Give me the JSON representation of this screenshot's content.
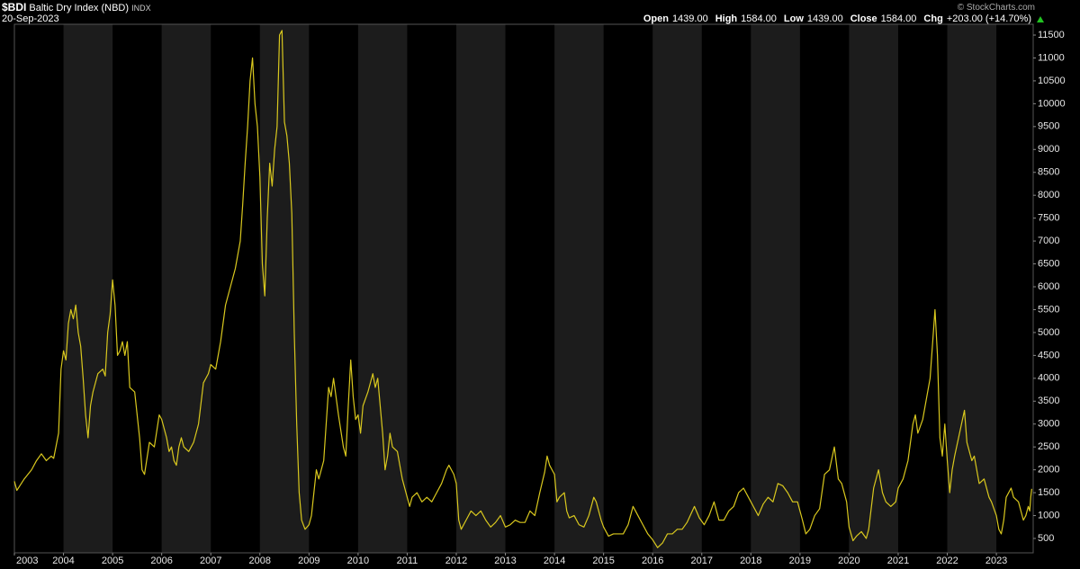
{
  "header": {
    "symbol": "$BDI",
    "name": "Baltic Dry Index (NBD)",
    "exchange": "INDX",
    "date": "20-Sep-2023",
    "watermark": "© StockCharts.com",
    "quote": [
      {
        "label": "Open",
        "value": "1439.00"
      },
      {
        "label": "High",
        "value": "1584.00"
      },
      {
        "label": "Low",
        "value": "1439.00"
      },
      {
        "label": "Close",
        "value": "1584.00"
      },
      {
        "label": "Chg",
        "value": "+203.00 (+14.70%)"
      }
    ]
  },
  "chart_data": {
    "type": "line",
    "color": "#d9c81e",
    "background": "#000000",
    "band_color": "#1c1c1c",
    "xlim": [
      2003,
      2023.75
    ],
    "xticks": [
      2003,
      2004,
      2005,
      2006,
      2007,
      2008,
      2009,
      2010,
      2011,
      2012,
      2013,
      2014,
      2015,
      2016,
      2017,
      2018,
      2019,
      2020,
      2021,
      2022,
      2023
    ],
    "ylim": [
      186,
      11736
    ],
    "yticks": [
      500,
      1000,
      1500,
      2000,
      2500,
      3000,
      3500,
      4000,
      4500,
      5000,
      5500,
      6000,
      6500,
      7000,
      7500,
      8000,
      8500,
      9000,
      9500,
      10000,
      10500,
      11000,
      11500
    ],
    "series": [
      {
        "name": "$BDI",
        "x": [
          2003.0,
          2003.05,
          2003.2,
          2003.35,
          2003.45,
          2003.55,
          2003.65,
          2003.75,
          2003.8,
          2003.9,
          2003.95,
          2004.0,
          2004.05,
          2004.1,
          2004.15,
          2004.2,
          2004.25,
          2004.3,
          2004.35,
          2004.4,
          2004.45,
          2004.5,
          2004.55,
          2004.6,
          2004.7,
          2004.8,
          2004.85,
          2004.9,
          2004.95,
          2005.0,
          2005.05,
          2005.1,
          2005.15,
          2005.2,
          2005.25,
          2005.3,
          2005.35,
          2005.45,
          2005.55,
          2005.6,
          2005.65,
          2005.75,
          2005.85,
          2005.95,
          2006.0,
          2006.1,
          2006.15,
          2006.2,
          2006.25,
          2006.3,
          2006.35,
          2006.4,
          2006.45,
          2006.55,
          2006.65,
          2006.75,
          2006.85,
          2006.95,
          2007.0,
          2007.1,
          2007.15,
          2007.2,
          2007.3,
          2007.4,
          2007.5,
          2007.55,
          2007.6,
          2007.65,
          2007.7,
          2007.75,
          2007.8,
          2007.85,
          2007.9,
          2007.95,
          2008.0,
          2008.05,
          2008.1,
          2008.15,
          2008.2,
          2008.25,
          2008.3,
          2008.35,
          2008.4,
          2008.45,
          2008.5,
          2008.55,
          2008.6,
          2008.65,
          2008.7,
          2008.75,
          2008.8,
          2008.85,
          2008.92,
          2009.0,
          2009.05,
          2009.1,
          2009.15,
          2009.2,
          2009.3,
          2009.35,
          2009.4,
          2009.45,
          2009.5,
          2009.6,
          2009.7,
          2009.75,
          2009.8,
          2009.85,
          2009.9,
          2009.95,
          2010.0,
          2010.05,
          2010.1,
          2010.2,
          2010.3,
          2010.35,
          2010.4,
          2010.5,
          2010.55,
          2010.6,
          2010.65,
          2010.7,
          2010.8,
          2010.9,
          2011.0,
          2011.05,
          2011.1,
          2011.2,
          2011.3,
          2011.4,
          2011.5,
          2011.6,
          2011.7,
          2011.8,
          2011.85,
          2011.95,
          2012.0,
          2012.05,
          2012.1,
          2012.2,
          2012.3,
          2012.4,
          2012.5,
          2012.6,
          2012.7,
          2012.8,
          2012.9,
          2013.0,
          2013.1,
          2013.2,
          2013.3,
          2013.4,
          2013.5,
          2013.6,
          2013.7,
          2013.8,
          2013.85,
          2013.9,
          2014.0,
          2014.05,
          2014.1,
          2014.2,
          2014.25,
          2014.3,
          2014.4,
          2014.5,
          2014.6,
          2014.7,
          2014.8,
          2014.85,
          2014.95,
          2015.0,
          2015.1,
          2015.2,
          2015.3,
          2015.4,
          2015.5,
          2015.6,
          2015.65,
          2015.7,
          2015.8,
          2015.9,
          2016.0,
          2016.1,
          2016.2,
          2016.3,
          2016.4,
          2016.5,
          2016.6,
          2016.7,
          2016.85,
          2016.95,
          2017.05,
          2017.15,
          2017.25,
          2017.35,
          2017.45,
          2017.55,
          2017.65,
          2017.75,
          2017.85,
          2017.95,
          2018.05,
          2018.15,
          2018.25,
          2018.35,
          2018.45,
          2018.55,
          2018.65,
          2018.75,
          2018.85,
          2018.95,
          2019.05,
          2019.12,
          2019.2,
          2019.3,
          2019.4,
          2019.5,
          2019.6,
          2019.7,
          2019.78,
          2019.85,
          2019.95,
          2020.0,
          2020.08,
          2020.15,
          2020.25,
          2020.35,
          2020.4,
          2020.5,
          2020.6,
          2020.68,
          2020.75,
          2020.85,
          2020.95,
          2021.0,
          2021.1,
          2021.2,
          2021.3,
          2021.35,
          2021.4,
          2021.5,
          2021.55,
          2021.65,
          2021.75,
          2021.8,
          2021.85,
          2021.9,
          2021.95,
          2022.0,
          2022.05,
          2022.1,
          2022.15,
          2022.25,
          2022.35,
          2022.4,
          2022.5,
          2022.55,
          2022.65,
          2022.75,
          2022.85,
          2022.9,
          2023.0,
          2023.05,
          2023.1,
          2023.15,
          2023.2,
          2023.3,
          2023.35,
          2023.45,
          2023.5,
          2023.55,
          2023.6,
          2023.65,
          2023.68,
          2023.7,
          2023.72
        ],
        "values": [
          1750,
          1550,
          1800,
          2000,
          2200,
          2350,
          2200,
          2300,
          2250,
          2800,
          4200,
          4600,
          4400,
          5200,
          5500,
          5300,
          5600,
          5000,
          4700,
          4000,
          3200,
          2700,
          3400,
          3700,
          4100,
          4200,
          4050,
          5000,
          5400,
          6150,
          5600,
          4500,
          4600,
          4800,
          4500,
          4800,
          3800,
          3700,
          2700,
          2000,
          1900,
          2600,
          2500,
          3200,
          3100,
          2700,
          2400,
          2500,
          2200,
          2100,
          2500,
          2700,
          2500,
          2400,
          2600,
          3000,
          3900,
          4100,
          4300,
          4200,
          4500,
          4800,
          5600,
          6000,
          6400,
          6700,
          7000,
          7800,
          8700,
          9500,
          10500,
          11000,
          10000,
          9500,
          8400,
          6500,
          5800,
          7500,
          8700,
          8200,
          9000,
          9500,
          11500,
          11600,
          9600,
          9300,
          8700,
          7600,
          5000,
          3000,
          1500,
          900,
          700,
          800,
          1000,
          1500,
          2000,
          1800,
          2200,
          3000,
          3800,
          3600,
          4000,
          3200,
          2500,
          2300,
          3400,
          4400,
          3600,
          3100,
          3200,
          2800,
          3400,
          3700,
          4100,
          3800,
          4000,
          2800,
          2000,
          2300,
          2800,
          2500,
          2400,
          1800,
          1400,
          1200,
          1400,
          1500,
          1300,
          1400,
          1300,
          1500,
          1700,
          2000,
          2100,
          1900,
          1700,
          900,
          700,
          900,
          1100,
          1000,
          1100,
          900,
          750,
          850,
          1000,
          750,
          800,
          900,
          850,
          850,
          1100,
          1000,
          1500,
          1950,
          2300,
          2100,
          1900,
          1300,
          1400,
          1500,
          1100,
          950,
          1000,
          800,
          750,
          1000,
          1400,
          1300,
          900,
          750,
          550,
          600,
          600,
          600,
          800,
          1200,
          1100,
          1000,
          800,
          600,
          470,
          300,
          400,
          600,
          600,
          700,
          700,
          850,
          1200,
          950,
          800,
          1000,
          1300,
          900,
          900,
          1100,
          1200,
          1500,
          1600,
          1400,
          1200,
          1000,
          1250,
          1400,
          1300,
          1700,
          1650,
          1500,
          1300,
          1300,
          900,
          600,
          700,
          1000,
          1150,
          1900,
          2000,
          2500,
          1800,
          1700,
          1300,
          750,
          450,
          550,
          650,
          500,
          700,
          1600,
          2000,
          1500,
          1300,
          1200,
          1300,
          1600,
          1800,
          2200,
          3000,
          3200,
          2800,
          3100,
          3400,
          4000,
          5500,
          4500,
          2700,
          2300,
          3000,
          2200,
          1500,
          2000,
          2300,
          2800,
          3300,
          2600,
          2200,
          2300,
          1700,
          1800,
          1400,
          1300,
          1000,
          700,
          600,
          900,
          1400,
          1600,
          1400,
          1300,
          1100,
          900,
          1000,
          1200,
          1100,
          1400,
          1584
        ]
      }
    ]
  }
}
